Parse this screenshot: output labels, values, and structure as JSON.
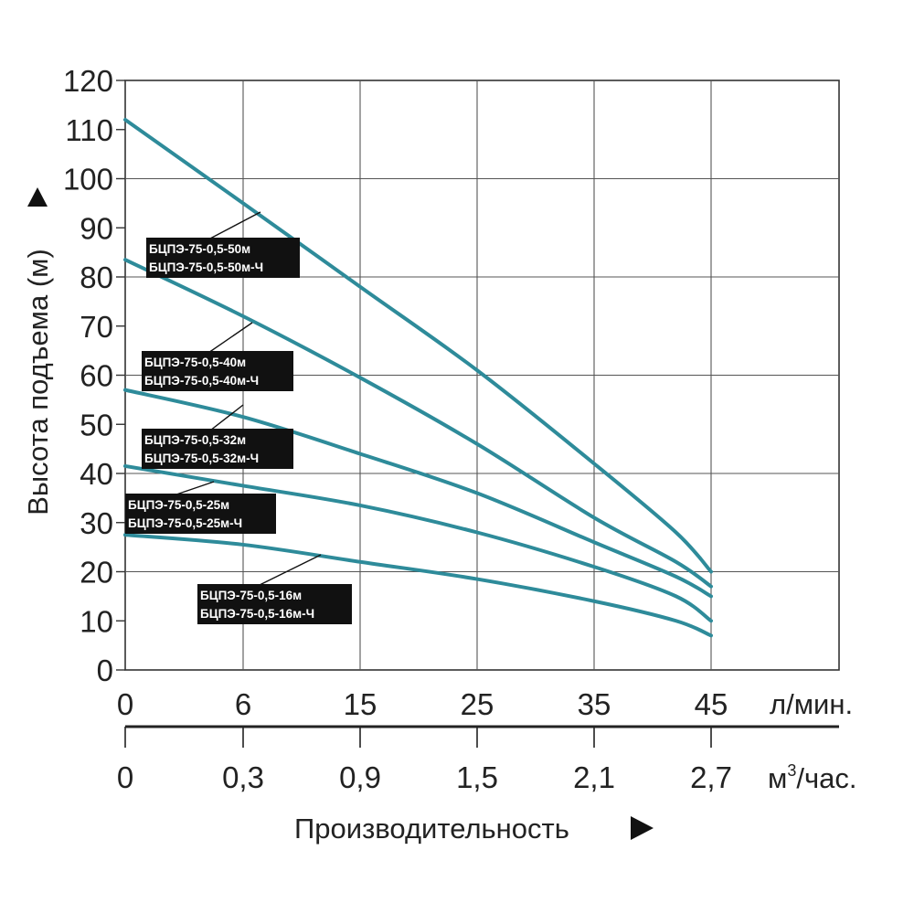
{
  "chart_data": {
    "type": "line",
    "title": "",
    "ylabel": "Высота подъема (м)",
    "xlabel": "Производительность",
    "ylim": [
      0,
      120
    ],
    "yticks": [
      0,
      10,
      20,
      30,
      40,
      50,
      60,
      70,
      80,
      90,
      100,
      110,
      120
    ],
    "x_primary_unit": "л/мин.",
    "x_primary_ticks": [
      "0",
      "6",
      "15",
      "25",
      "35",
      "45"
    ],
    "x_secondary_unit_base": "м",
    "x_secondary_unit_sup": "3",
    "x_secondary_unit_tail": "/час.",
    "x_secondary_ticks": [
      "0",
      "0,3",
      "0,9",
      "1,5",
      "2,1",
      "2,7"
    ],
    "grid": true,
    "series_color": "#2e8b9a",
    "series": [
      {
        "labels": [
          "БЦПЭ-75-0,5-50м",
          "БЦПЭ-75-0,5-50м-Ч"
        ],
        "points": [
          [
            0,
            112
          ],
          [
            6,
            95
          ],
          [
            15,
            78
          ],
          [
            25,
            61
          ],
          [
            35,
            42
          ],
          [
            42,
            28
          ],
          [
            45,
            20
          ]
        ]
      },
      {
        "labels": [
          "БЦПЭ-75-0,5-40м",
          "БЦПЭ-75-0,5-40м-Ч"
        ],
        "points": [
          [
            0,
            83.5
          ],
          [
            6,
            72
          ],
          [
            15,
            59.5
          ],
          [
            25,
            46
          ],
          [
            35,
            31
          ],
          [
            42,
            22
          ],
          [
            45,
            17
          ]
        ]
      },
      {
        "labels": [
          "БЦПЭ-75-0,5-32м",
          "БЦПЭ-75-0,5-32м-Ч"
        ],
        "points": [
          [
            0,
            57
          ],
          [
            6,
            51.5
          ],
          [
            15,
            44
          ],
          [
            25,
            36
          ],
          [
            35,
            26
          ],
          [
            42,
            19
          ],
          [
            45,
            15
          ]
        ]
      },
      {
        "labels": [
          "БЦПЭ-75-0,5-25м",
          "БЦПЭ-75-0,5-25м-Ч"
        ],
        "points": [
          [
            0,
            41.5
          ],
          [
            6,
            37.5
          ],
          [
            15,
            33.5
          ],
          [
            25,
            28
          ],
          [
            35,
            21
          ],
          [
            42,
            15
          ],
          [
            45,
            10
          ]
        ]
      },
      {
        "labels": [
          "БЦПЭ-75-0,5-16м",
          "БЦПЭ-75-0,5-16м-Ч"
        ],
        "points": [
          [
            0,
            27.5
          ],
          [
            6,
            25.5
          ],
          [
            15,
            22
          ],
          [
            25,
            18.5
          ],
          [
            35,
            14
          ],
          [
            42,
            10
          ],
          [
            45,
            7
          ]
        ]
      }
    ]
  }
}
